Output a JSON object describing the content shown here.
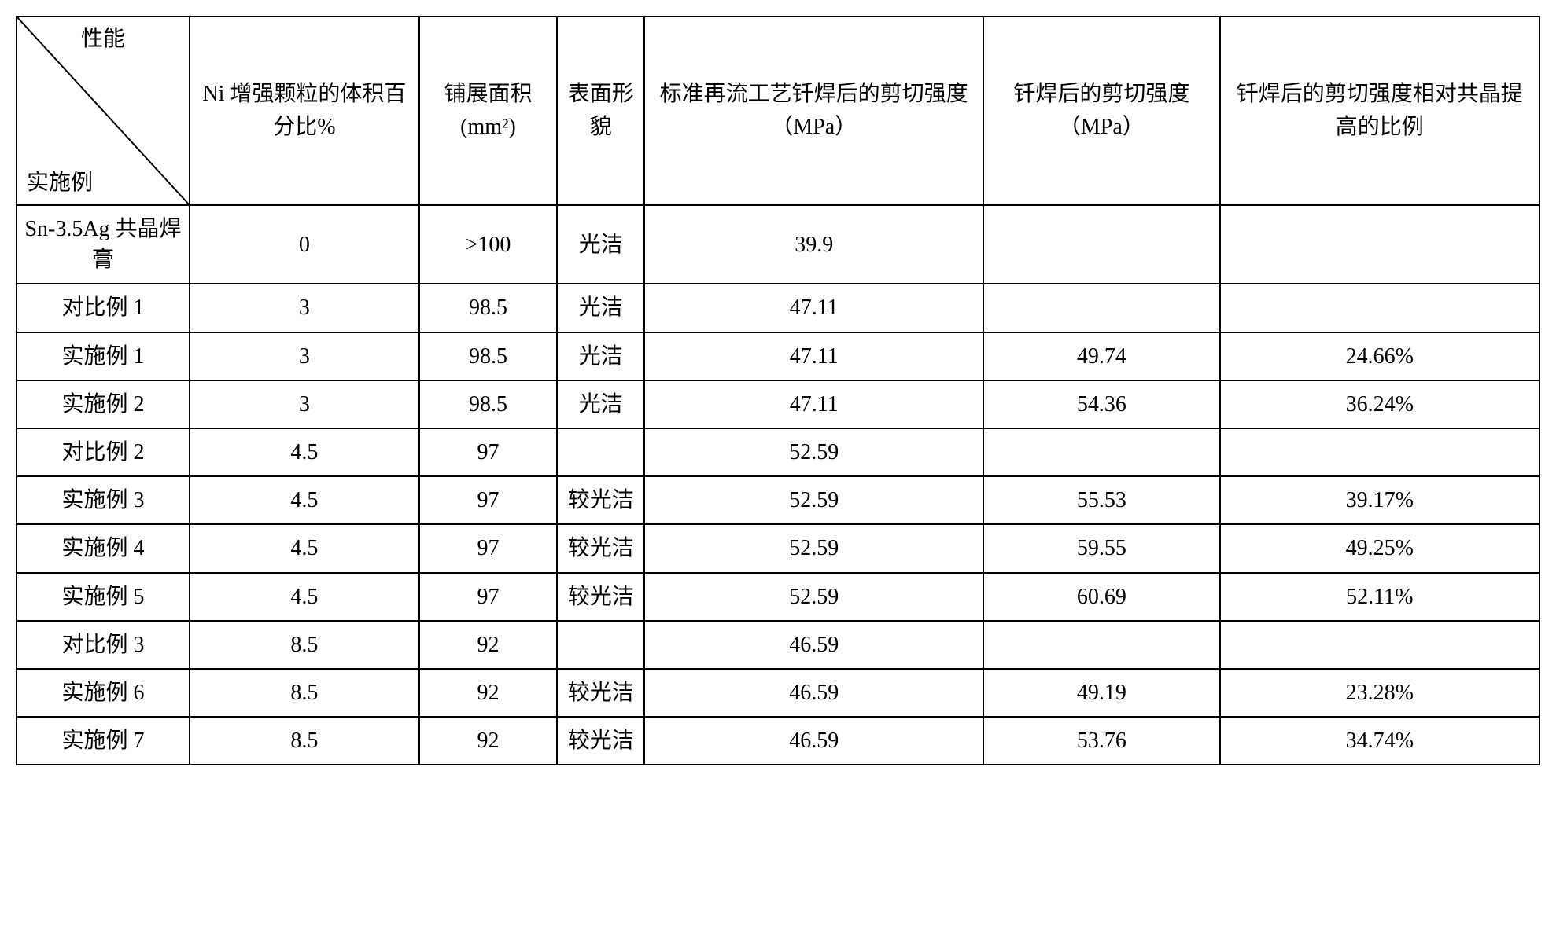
{
  "table": {
    "type": "table",
    "background_color": "#ffffff",
    "border_color": "#000000",
    "font_family": "SimSun",
    "cell_fontsize": 28,
    "diag_header": {
      "top_label": "性能",
      "bottom_label": "实施例"
    },
    "columns": [
      "Ni 增强颗粒的体积百分比%",
      "铺展面积(mm²)",
      "表面形貌",
      "标准再流工艺钎焊后的剪切强度（MPa）",
      "钎焊后的剪切强度（MPa）",
      "钎焊后的剪切强度相对共晶提高的比例"
    ],
    "rows": [
      {
        "label": "Sn-3.5Ag 共晶焊膏",
        "cells": [
          "0",
          ">100",
          "光洁",
          "39.9",
          "",
          ""
        ]
      },
      {
        "label": "对比例 1",
        "cells": [
          "3",
          "98.5",
          "光洁",
          "47.11",
          "",
          ""
        ]
      },
      {
        "label": "实施例 1",
        "cells": [
          "3",
          "98.5",
          "光洁",
          "47.11",
          "49.74",
          "24.66%"
        ]
      },
      {
        "label": "实施例 2",
        "cells": [
          "3",
          "98.5",
          "光洁",
          "47.11",
          "54.36",
          "36.24%"
        ]
      },
      {
        "label": "对比例 2",
        "cells": [
          "4.5",
          "97",
          "",
          "52.59",
          "",
          ""
        ]
      },
      {
        "label": "实施例 3",
        "cells": [
          "4.5",
          "97",
          "较光洁",
          "52.59",
          "55.53",
          "39.17%"
        ]
      },
      {
        "label": "实施例 4",
        "cells": [
          "4.5",
          "97",
          "较光洁",
          "52.59",
          "59.55",
          "49.25%"
        ]
      },
      {
        "label": "实施例 5",
        "cells": [
          "4.5",
          "97",
          "较光洁",
          "52.59",
          "60.69",
          "52.11%"
        ]
      },
      {
        "label": "对比例 3",
        "cells": [
          "8.5",
          "92",
          "",
          "46.59",
          "",
          ""
        ]
      },
      {
        "label": "实施例 6",
        "cells": [
          "8.5",
          "92",
          "较光洁",
          "46.59",
          "49.19",
          "23.28%"
        ]
      },
      {
        "label": "实施例 7",
        "cells": [
          "8.5",
          "92",
          "较光洁",
          "46.59",
          "53.76",
          "34.74%"
        ]
      }
    ],
    "column_widths_pct": [
      14,
      12,
      10,
      12,
      16,
      14,
      22
    ]
  }
}
